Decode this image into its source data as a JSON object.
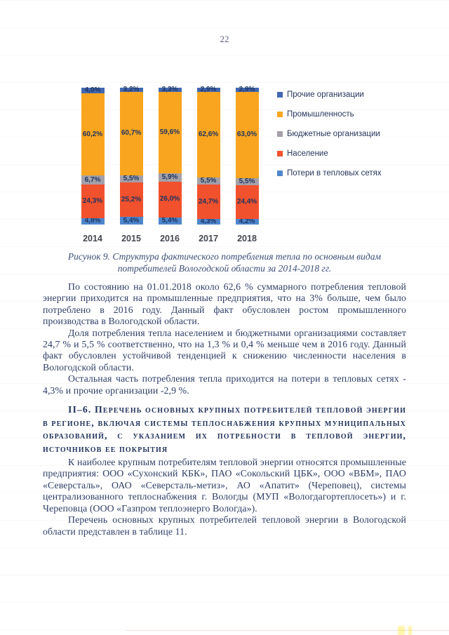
{
  "page": {
    "number": "22"
  },
  "chart_data": {
    "type": "bar",
    "stacked": true,
    "units": "percent",
    "ylim": [
      0,
      100
    ],
    "grid": false,
    "legend_position": "right",
    "categories": [
      "2014",
      "2015",
      "2016",
      "2017",
      "2018"
    ],
    "series": [
      {
        "name": "Потери в тепловых сетях",
        "color": "#4e86cc",
        "values": [
          4.8,
          5.4,
          5.4,
          4.3,
          4.2
        ],
        "labels": [
          "4,8%",
          "5,4%",
          "5,4%",
          "4,3%",
          "4,2%"
        ]
      },
      {
        "name": "Население",
        "color": "#f1512d",
        "values": [
          24.3,
          25.2,
          26.0,
          24.7,
          24.4
        ],
        "labels": [
          "24,3%",
          "25,2%",
          "26,0%",
          "24,7%",
          "24,4%"
        ]
      },
      {
        "name": "Бюджетные организации",
        "color": "#a5a0a8",
        "values": [
          6.7,
          5.5,
          5.9,
          5.5,
          5.5
        ],
        "labels": [
          "6,7%",
          "5,5%",
          "5,9%",
          "5,5%",
          "5,5%"
        ]
      },
      {
        "name": "Промышленность",
        "color": "#faa51f",
        "values": [
          60.2,
          60.7,
          59.6,
          62.6,
          63.0
        ],
        "labels": [
          "60,2%",
          "60,7%",
          "59,6%",
          "62,6%",
          "63,0%"
        ]
      },
      {
        "name": "Прочие организации",
        "color": "#4367b1",
        "values": [
          4.0,
          3.2,
          3.3,
          2.9,
          2.9
        ],
        "labels": [
          "4,0%",
          "3,2%",
          "3,3%",
          "2,9%",
          "2,9%"
        ]
      }
    ],
    "legend": [
      {
        "label": "Прочие организации",
        "color": "#4367b1"
      },
      {
        "label": "Промышленность",
        "color": "#faa51f"
      },
      {
        "label": "Бюджетные организации",
        "color": "#a5a0a8"
      },
      {
        "label": "Население",
        "color": "#f1512d"
      },
      {
        "label": "Потери в тепловых сетях",
        "color": "#4e86cc"
      }
    ]
  },
  "figure": {
    "caption": "Рисунок 9. Структура фактического потребления тепла по основным видам потребителей Вологодской области за 2014-2018 гг."
  },
  "document": {
    "paragraphs_before_heading": [
      "По состоянию на 01.01.2018 около 62,6 % суммарного потребления тепловой энергии приходится на промышленные предприятия, что на 3% больше, чем было потреблено в 2016 году. Данный факт обусловлен ростом промышленного производства в Вологодской области.",
      "Доля потребления тепла населением и бюджетными организациями составляет 24,7 % и 5,5 % соответственно, что на 1,3 % и 0,4 % меньше чем в 2016 году. Данный факт обусловлен устойчивой тенденцией к снижению численности населения в Вологодской области.",
      "Остальная часть потребления тепла приходится на потери в тепловых сетях - 4,3% и прочие организации -2,9 %."
    ],
    "heading": "II–6. Перечень основных крупных потребителей тепловой энергии в регионе, включая системы теплоснабжения крупных муниципальных образований, с указанием их потребности в тепловой энергии, источников ее покрытия",
    "paragraphs_after_heading": [
      "К наиболее крупным потребителям тепловой энергии относятся промышленные предприятия: ООО «Сухонский КБК», ПАО «Сокольский ЦБК», ООО «ВБМ», ПАО «Северсталь», ОАО «Северсталь-метиз», АО «Апатит» (Череповец), системы централизованного теплоснабжения г. Вологды (МУП «Вологдагортеплосеть») и г. Череповца (ООО «Газпром теплоэнерго Вологда»).",
      "Перечень основных крупных потребителей тепловой энергии в Вологодской области представлен в таблице 11."
    ]
  }
}
